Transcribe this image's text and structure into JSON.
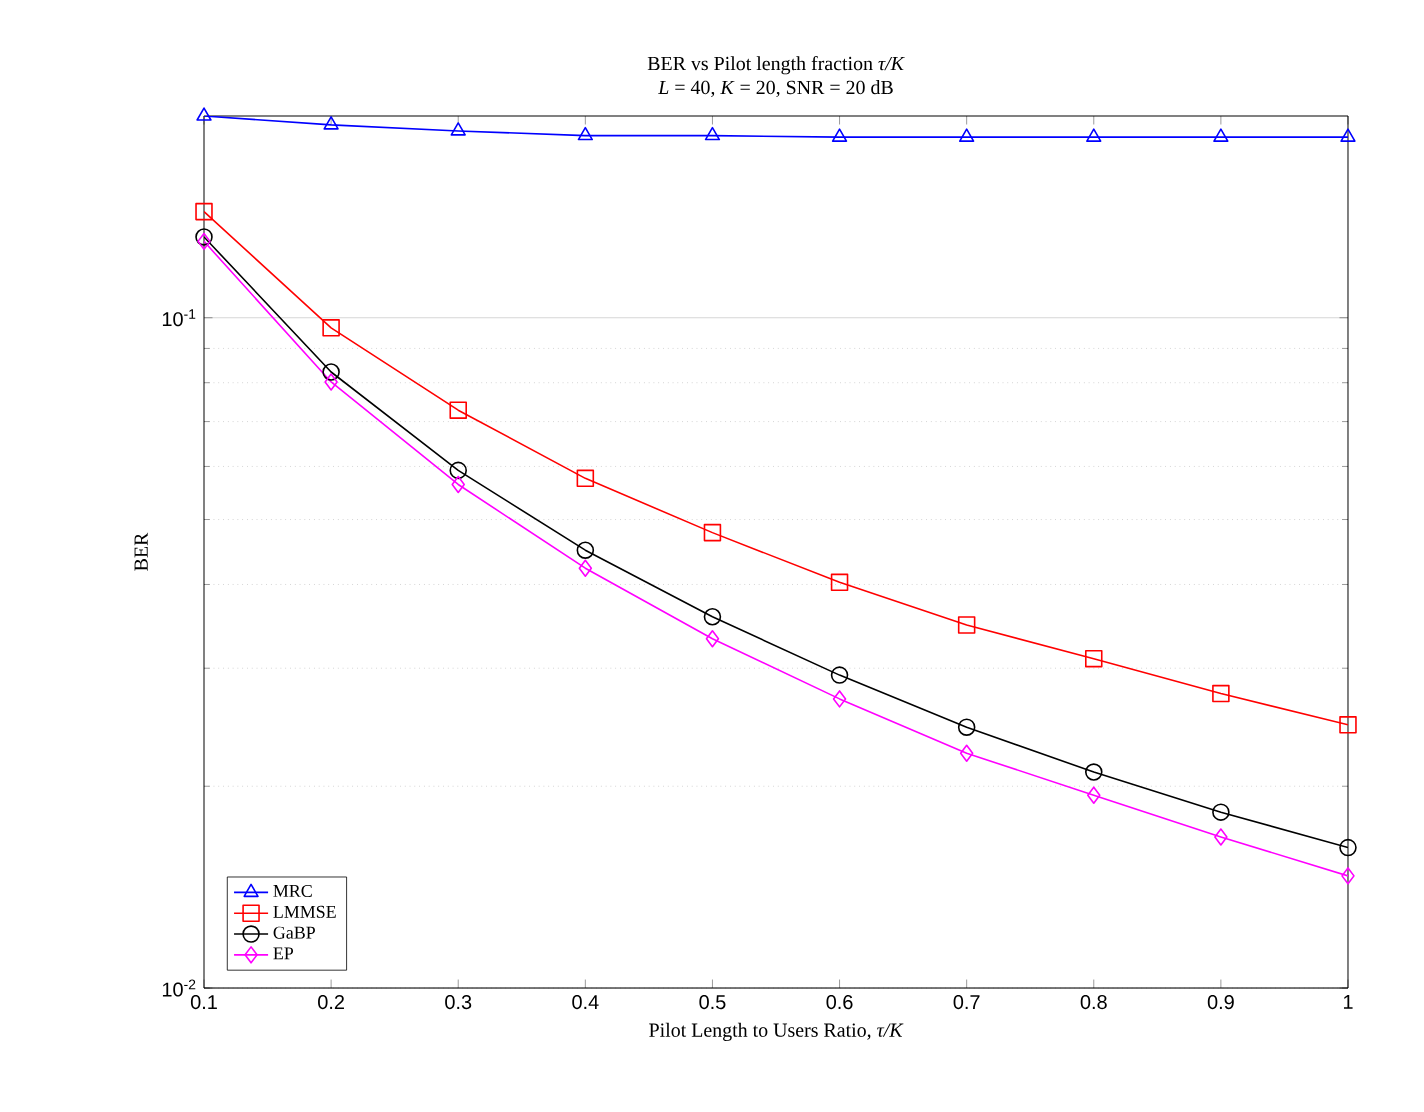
{
  "chart_data": {
    "type": "line",
    "title": "BER vs Pilot length fraction *τ/K*",
    "subtitle": "*L* = 40, *K* = 20, SNR = 20 dB",
    "xlabel": "Pilot Length to Users Ratio, *τ/K*",
    "ylabel": "BER",
    "x": [
      0.1,
      0.2,
      0.3,
      0.4,
      0.5,
      0.6,
      0.7,
      0.8,
      0.9,
      1
    ],
    "series": [
      {
        "name": "MRC",
        "color": "#0000ff",
        "marker": "triangle",
        "values": [
          0.2,
          0.194,
          0.19,
          0.187,
          0.187,
          0.186,
          0.186,
          0.186,
          0.186,
          0.186
        ]
      },
      {
        "name": "LMMSE",
        "color": "#ff0000",
        "marker": "square",
        "values": [
          0.144,
          0.0966,
          0.0728,
          0.0576,
          0.0478,
          0.0403,
          0.0348,
          0.031,
          0.0275,
          0.0247
        ]
      },
      {
        "name": "GaBP",
        "color": "#000000",
        "marker": "circle",
        "values": [
          0.132,
          0.083,
          0.0592,
          0.045,
          0.0358,
          0.0293,
          0.0245,
          0.021,
          0.0183,
          0.0162
        ]
      },
      {
        "name": "EP",
        "color": "#ff00ff",
        "marker": "diamond",
        "values": [
          0.13,
          0.0802,
          0.0564,
          0.0423,
          0.0332,
          0.027,
          0.0224,
          0.0194,
          0.0168,
          0.0147
        ]
      }
    ],
    "xlim": [
      0.1,
      1
    ],
    "xticks": [
      0.1,
      0.2,
      0.3,
      0.4,
      0.5,
      0.6,
      0.7,
      0.8,
      0.9,
      1
    ],
    "ylim": [
      0.01,
      0.2
    ],
    "yticks": [
      {
        "value": 0.01,
        "label": "10$^{-2}$"
      },
      {
        "value": 0.1,
        "label": "10$^{-1}$"
      }
    ],
    "log": "y",
    "grid": "y",
    "legend": "bottom left",
    "line_style": "solid"
  }
}
